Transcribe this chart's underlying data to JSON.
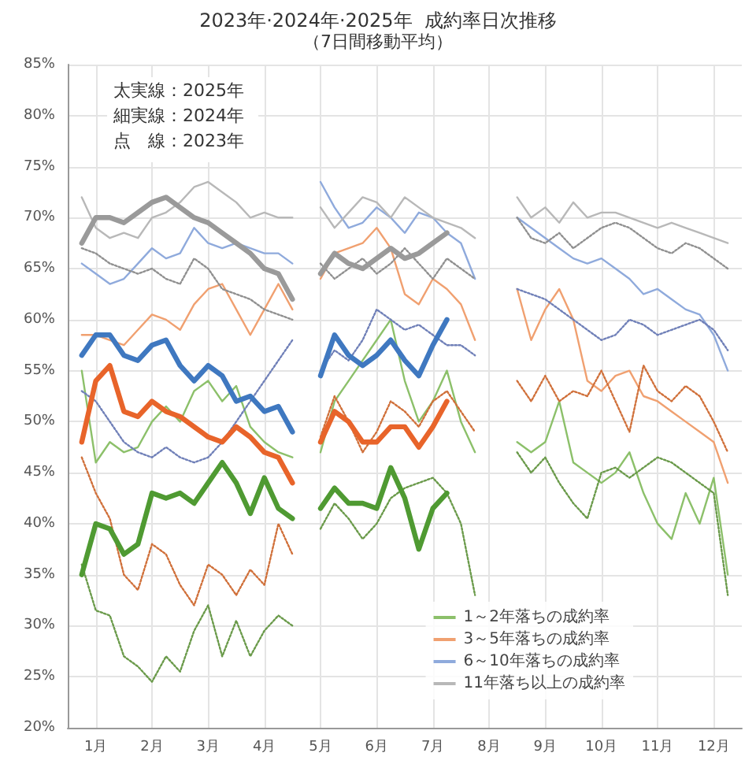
{
  "chart_data": {
    "type": "line",
    "title": "2023年·2024年·2025年  成約率日次推移",
    "subtitle": "（7日間移動平均）",
    "annotations": [
      "太実線：2025年",
      "細実線：2024年",
      "点　線：2023年"
    ],
    "x": [
      0.75,
      1.0,
      1.25,
      1.5,
      1.75,
      2.0,
      2.25,
      2.5,
      2.75,
      3.0,
      3.25,
      3.5,
      3.75,
      4.0,
      4.25,
      4.5,
      4.75,
      5.0,
      5.25,
      5.5,
      5.75,
      6.0,
      6.25,
      6.5,
      6.75,
      7.0,
      7.25,
      7.5,
      7.75,
      8.0,
      8.25,
      8.5,
      8.75,
      9.0,
      9.25,
      9.5,
      9.75,
      10.0,
      10.25,
      10.5,
      10.75,
      11.0,
      11.25,
      11.5,
      11.75,
      12.0,
      12.25
    ],
    "xlim": [
      0.5,
      12.5
    ],
    "xticks": [
      {
        "value": 1,
        "label": "1月"
      },
      {
        "value": 2,
        "label": "2月"
      },
      {
        "value": 3,
        "label": "3月"
      },
      {
        "value": 4,
        "label": "4月"
      },
      {
        "value": 5,
        "label": "5月"
      },
      {
        "value": 6,
        "label": "6月"
      },
      {
        "value": 7,
        "label": "7月"
      },
      {
        "value": 8,
        "label": "8月"
      },
      {
        "value": 9,
        "label": "9月"
      },
      {
        "value": 10,
        "label": "10月"
      },
      {
        "value": 11,
        "label": "11月"
      },
      {
        "value": 12,
        "label": "12月"
      }
    ],
    "ylim": [
      20,
      85
    ],
    "yticks": [
      {
        "value": 20,
        "label": "20%"
      },
      {
        "value": 25,
        "label": "25%"
      },
      {
        "value": 30,
        "label": "30%"
      },
      {
        "value": 35,
        "label": "35%"
      },
      {
        "value": 40,
        "label": "40%"
      },
      {
        "value": 45,
        "label": "45%"
      },
      {
        "value": 50,
        "label": "50%"
      },
      {
        "value": 55,
        "label": "55%"
      },
      {
        "value": 60,
        "label": "60%"
      },
      {
        "value": 65,
        "label": "65%"
      },
      {
        "value": 70,
        "label": "70%"
      },
      {
        "value": 75,
        "label": "75%"
      },
      {
        "value": 80,
        "label": "80%"
      },
      {
        "value": 85,
        "label": "85%"
      }
    ],
    "grid": true,
    "legend": "bottom right",
    "marker": "none",
    "series": [
      {
        "color": "#4f9a32",
        "line_style": "solid",
        "values": [
          35,
          40,
          39.5,
          37,
          38,
          43,
          42.5,
          43,
          42,
          44,
          46,
          44,
          41,
          44.5,
          41.5,
          40.5,
          null,
          41.5,
          43.5,
          42,
          42,
          41.5,
          45.5,
          42.5,
          37.5,
          41.5,
          43,
          null,
          null,
          null,
          null,
          null,
          null,
          null,
          null,
          null,
          null,
          null,
          null,
          null,
          null,
          null,
          null,
          null,
          null,
          null,
          null
        ]
      },
      {
        "color": "#e8642a",
        "line_style": "solid",
        "values": [
          48,
          54,
          55.5,
          51,
          50.5,
          52,
          51,
          50.5,
          49.5,
          48.5,
          48,
          49.5,
          48.5,
          47,
          46.5,
          44,
          null,
          48,
          51,
          50,
          48,
          48,
          49.5,
          49.5,
          47.5,
          49.5,
          52,
          null,
          null,
          null,
          null,
          null,
          null,
          null,
          null,
          null,
          null,
          null,
          null,
          null,
          null,
          null,
          null,
          null,
          null,
          null,
          null
        ]
      },
      {
        "color": "#3f78c0",
        "line_style": "solid",
        "values": [
          56.5,
          58.5,
          58.5,
          56.5,
          56,
          57.5,
          58,
          55.5,
          54,
          55.5,
          54.5,
          52,
          52.5,
          51,
          51.5,
          49,
          null,
          54.5,
          58.5,
          56.5,
          55.5,
          56.5,
          58,
          56,
          54.5,
          57.5,
          60,
          null,
          null,
          null,
          null,
          null,
          null,
          null,
          null,
          null,
          null,
          null,
          null,
          null,
          null,
          null,
          null,
          null,
          null,
          null,
          null
        ]
      },
      {
        "color": "#9a9a9a",
        "line_style": "solid",
        "values": [
          67.5,
          70,
          70,
          69.5,
          70.5,
          71.5,
          72,
          71,
          70,
          69.5,
          68.5,
          67.5,
          66.5,
          65,
          64.5,
          62,
          null,
          64.5,
          66.5,
          65.5,
          65,
          66,
          67,
          66,
          66.5,
          67.5,
          68.5,
          null,
          null,
          null,
          null,
          null,
          null,
          null,
          null,
          null,
          null,
          null,
          null,
          null,
          null,
          null,
          null,
          null,
          null,
          null,
          null
        ]
      },
      {
        "name": "1～2年落ちの成約率",
        "color": "#8cc06a",
        "line_style": "solid",
        "values": [
          55,
          46,
          48,
          47,
          47.5,
          50,
          51.5,
          50,
          53,
          54,
          52,
          53.5,
          49.5,
          48,
          47,
          46.5,
          null,
          47,
          52,
          54,
          56,
          58,
          60,
          54,
          50,
          52,
          55,
          50,
          47,
          null,
          null,
          48,
          47,
          48,
          52,
          46,
          45,
          44,
          45,
          47,
          43,
          40,
          38.5,
          43,
          40,
          44.5,
          35
        ]
      },
      {
        "name": "3～5年落ちの成約率",
        "color": "#f0a070",
        "line_style": "solid",
        "values": [
          58.5,
          58.5,
          58,
          57.5,
          59,
          60.5,
          60,
          59,
          61.5,
          63,
          63.5,
          61,
          58.5,
          61,
          63.5,
          61,
          null,
          64,
          66.5,
          67,
          67.5,
          69,
          67,
          62.5,
          61.5,
          64,
          63,
          61.5,
          58,
          null,
          null,
          63,
          58,
          61,
          63,
          60,
          54,
          53,
          54.5,
          55,
          52.5,
          52,
          51,
          50,
          49,
          48,
          44
        ]
      },
      {
        "name": "6～10年落ちの成約率",
        "color": "#8faadc",
        "line_style": "solid",
        "values": [
          65.5,
          64.5,
          63.5,
          64,
          65.5,
          67,
          66,
          66.5,
          69,
          67.5,
          67,
          67.5,
          67,
          66.5,
          66.5,
          65.5,
          null,
          73.5,
          71,
          69,
          69.5,
          71,
          70,
          68.5,
          70.5,
          70,
          68.5,
          67.5,
          64,
          null,
          null,
          70,
          69,
          68,
          67,
          66,
          65.5,
          66,
          65,
          64,
          62.5,
          63,
          62,
          61,
          60.5,
          58.5,
          55
        ]
      },
      {
        "name": "11年落ち以上の成約率",
        "color": "#b8b8b8",
        "line_style": "solid",
        "values": [
          72,
          69,
          68,
          68.5,
          68,
          70,
          70.5,
          71.5,
          73,
          73.5,
          72.5,
          71.5,
          70,
          70.5,
          70,
          70,
          null,
          71,
          69,
          70.5,
          72,
          71.5,
          70,
          72,
          71,
          70,
          69.5,
          69,
          68,
          null,
          null,
          72,
          70,
          71,
          69.5,
          71.5,
          70,
          70.5,
          70.5,
          70,
          69.5,
          69,
          69.5,
          69,
          68.5,
          68,
          67.5
        ]
      },
      {
        "color": "#6a9a4a",
        "line_style": "dotted",
        "values": [
          36,
          31.5,
          31,
          27,
          26,
          24.5,
          27,
          25.5,
          29.5,
          32,
          27,
          30.5,
          27,
          29.5,
          31,
          30,
          null,
          39.5,
          42,
          40.5,
          38.5,
          40,
          42.5,
          43.5,
          44,
          44.5,
          43,
          40,
          33,
          null,
          null,
          47,
          45,
          46.5,
          44,
          42,
          40.5,
          45,
          45.5,
          44.5,
          45.5,
          46.5,
          46,
          45,
          44,
          43,
          33
        ]
      },
      {
        "color": "#d0703a",
        "line_style": "dotted",
        "values": [
          46.5,
          43,
          40.5,
          35,
          33.5,
          38,
          37,
          34,
          32,
          36,
          35,
          33,
          35.5,
          34,
          40,
          37,
          null,
          48.5,
          52.5,
          50,
          47,
          49,
          52,
          51,
          49.5,
          52,
          53,
          51,
          49,
          null,
          null,
          54,
          52,
          54.5,
          52,
          53,
          52.5,
          55,
          52,
          49,
          55.5,
          53,
          52,
          53.5,
          52.5,
          50,
          47
        ]
      },
      {
        "color": "#7080b8",
        "line_style": "dotted",
        "values": [
          53,
          52,
          50,
          48,
          47,
          46.5,
          47.5,
          46.5,
          46,
          46.5,
          48,
          50,
          52,
          54,
          56,
          58,
          null,
          55,
          57,
          56,
          58,
          61,
          60,
          59,
          59.5,
          58.5,
          57.5,
          57.5,
          56.5,
          null,
          null,
          63,
          62.5,
          62,
          61,
          60,
          59,
          58,
          58.5,
          60,
          59.5,
          58.5,
          59,
          59.5,
          60,
          59,
          57
        ]
      },
      {
        "color": "#909090",
        "line_style": "dotted",
        "values": [
          67,
          66.5,
          65.5,
          65,
          64.5,
          65,
          64,
          63.5,
          66,
          65,
          63,
          62.5,
          62,
          61,
          60.5,
          60,
          null,
          65.5,
          64,
          65,
          66,
          64.5,
          65.5,
          67,
          65.5,
          64,
          66,
          65,
          64,
          null,
          null,
          70,
          68,
          67.5,
          68.5,
          67,
          68,
          69,
          69.5,
          69,
          68,
          67,
          66.5,
          67.5,
          67,
          66,
          65
        ]
      }
    ]
  }
}
